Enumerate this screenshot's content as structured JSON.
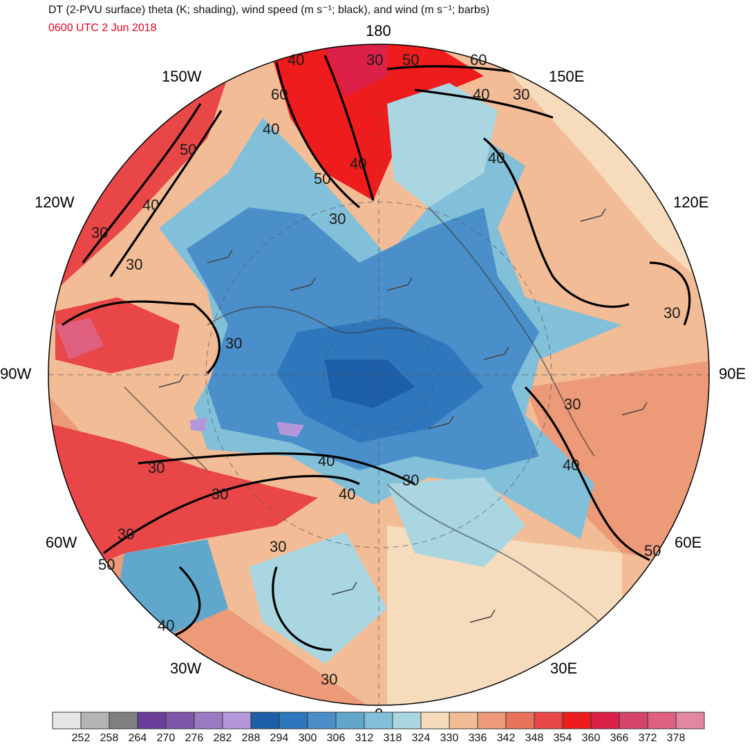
{
  "header": {
    "title": "DT (2-PVU surface) theta (K; shading), wind speed (m s⁻¹; black), and wind (m s⁻¹; barbs)",
    "valid_time": "0600 UTC 2 Jun 2018"
  },
  "map": {
    "projection": "north polar stereographic",
    "longitude_labels": [
      "180",
      "150E",
      "120E",
      "90E",
      "60E",
      "30E",
      "0",
      "30W",
      "60W",
      "90W",
      "120W",
      "150W"
    ],
    "contour_levels": [
      "30",
      "40",
      "50",
      "60"
    ]
  },
  "colorbar": {
    "units": "K",
    "ticks": [
      "252",
      "258",
      "264",
      "270",
      "276",
      "282",
      "288",
      "294",
      "300",
      "306",
      "312",
      "318",
      "324",
      "330",
      "336",
      "342",
      "348",
      "354",
      "360",
      "366",
      "372",
      "378"
    ],
    "colors": [
      "#e6e6e6",
      "#b4b4b4",
      "#808080",
      "#6a3d9a",
      "#7e56a8",
      "#9b7ac3",
      "#b497d9",
      "#1c5ea8",
      "#2e77bd",
      "#4a8fc9",
      "#5fa8cc",
      "#82bfd8",
      "#a9d6e1",
      "#f6dcbc",
      "#f2bc97",
      "#ec9a78",
      "#e7735a",
      "#e94747",
      "#ee1c1c",
      "#dc2048",
      "#d6446e",
      "#e0607f",
      "#e386a2"
    ]
  }
}
